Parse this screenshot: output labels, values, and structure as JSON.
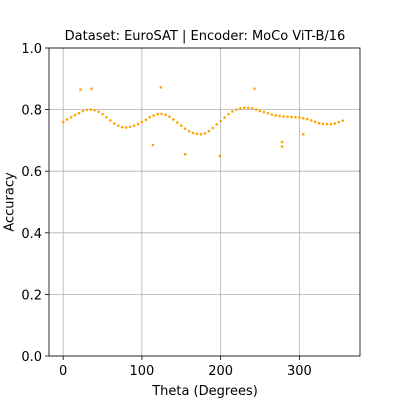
{
  "chart_data": {
    "type": "scatter",
    "title": "Dataset: EuroSAT | Encoder: MoCo ViT-B/16",
    "xlabel": "Theta (Degrees)",
    "ylabel": "Accuracy",
    "xlim": [
      -18,
      377
    ],
    "ylim": [
      0,
      1
    ],
    "xticks": [
      0,
      100,
      200,
      300
    ],
    "yticks": [
      {
        "value": 0,
        "label": "0.0"
      },
      0.2,
      0.4,
      0.6,
      0.8,
      {
        "value": 1,
        "label": "1.0"
      }
    ],
    "grid": true,
    "series": [
      {
        "color": "#ffa500",
        "x": [
          0,
          5,
          10,
          15,
          20,
          25,
          30,
          35,
          40,
          45,
          50,
          55,
          60,
          65,
          70,
          75,
          80,
          85,
          90,
          95,
          100,
          105,
          110,
          115,
          120,
          125,
          130,
          135,
          140,
          145,
          150,
          155,
          160,
          165,
          170,
          175,
          180,
          185,
          190,
          195,
          200,
          205,
          210,
          215,
          220,
          225,
          230,
          235,
          240,
          245,
          250,
          255,
          260,
          265,
          270,
          275,
          280,
          285,
          290,
          295,
          300,
          305,
          310,
          315,
          320,
          325,
          330,
          335,
          340,
          345,
          350,
          355,
          22,
          36,
          114,
          124,
          155,
          199,
          243,
          278,
          278,
          305
        ],
        "values": [
          0.76,
          0.768,
          0.775,
          0.782,
          0.788,
          0.795,
          0.799,
          0.8,
          0.798,
          0.793,
          0.785,
          0.775,
          0.765,
          0.755,
          0.748,
          0.743,
          0.742,
          0.744,
          0.748,
          0.753,
          0.76,
          0.767,
          0.775,
          0.781,
          0.785,
          0.786,
          0.783,
          0.777,
          0.768,
          0.758,
          0.748,
          0.738,
          0.73,
          0.724,
          0.721,
          0.72,
          0.723,
          0.73,
          0.74,
          0.752,
          0.763,
          0.774,
          0.785,
          0.794,
          0.8,
          0.804,
          0.806,
          0.806,
          0.804,
          0.8,
          0.796,
          0.792,
          0.788,
          0.784,
          0.781,
          0.779,
          0.778,
          0.777,
          0.776,
          0.775,
          0.774,
          0.772,
          0.769,
          0.765,
          0.76,
          0.756,
          0.754,
          0.753,
          0.753,
          0.755,
          0.759,
          0.764,
          0.865,
          0.868,
          0.685,
          0.872,
          0.655,
          0.65,
          0.868,
          0.695,
          0.68,
          0.72
        ]
      }
    ]
  }
}
